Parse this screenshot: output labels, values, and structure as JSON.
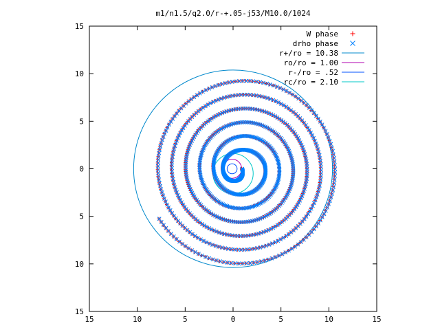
{
  "chart_data": {
    "type": "scatter",
    "title": "m1/n1.5/q2.0/r-+.05-j53/M10.0/1024",
    "xlabel": "",
    "ylabel": "",
    "xlim": [
      -15,
      15
    ],
    "ylim": [
      -15,
      15
    ],
    "xticks": [
      -15,
      -10,
      -5,
      0,
      5,
      10,
      15
    ],
    "yticks": [
      -15,
      -10,
      -5,
      0,
      5,
      10,
      15
    ],
    "xtick_labels": [
      "15",
      "10",
      "5",
      "0",
      "5",
      "10",
      "15"
    ],
    "ytick_labels": [
      "15",
      "10",
      "5",
      "0",
      "5",
      "10",
      "15"
    ],
    "grid": false,
    "legend_position": "top-right",
    "series": [
      {
        "name": "W phase",
        "kind": "points",
        "marker": "plus",
        "color": "#ff0000",
        "spiral": {
          "r_inner": 0.9,
          "r_outer": 10.2,
          "pitch": 1.45,
          "center": [
            0,
            0
          ],
          "points": 1024
        }
      },
      {
        "name": "drho phase",
        "kind": "points",
        "marker": "cross",
        "color": "#0080ff",
        "spiral": {
          "r_inner": 0.9,
          "r_outer": 10.2,
          "pitch": 1.45,
          "center": [
            0,
            0
          ],
          "points": 1024
        }
      },
      {
        "name": "r+/ro = 10.38",
        "kind": "circle",
        "radius": 10.38,
        "color": "#0088cc"
      },
      {
        "name": "ro/ro = 1.00",
        "kind": "circle",
        "radius": 1.0,
        "color": "#b000b0"
      },
      {
        "name": "r-/ro = .52",
        "kind": "circle",
        "radius": 0.52,
        "color": "#0050ff"
      },
      {
        "name": "rc/ro = 2.10",
        "kind": "circle",
        "radius": 2.1,
        "color": "#00c8c8"
      }
    ]
  }
}
